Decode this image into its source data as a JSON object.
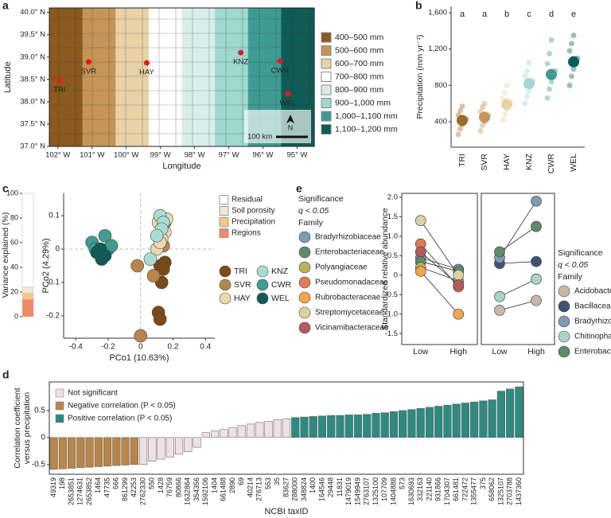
{
  "chart_data": [
    {
      "type": "map",
      "panel": "a",
      "xlabel": "Longitude",
      "ylabel": "Latitude",
      "xlim": [
        -102.25,
        -94.5
      ],
      "ylim": [
        37,
        40.1
      ],
      "xticks": [
        {
          "value": -102,
          "label": "102° W"
        },
        {
          "value": -101,
          "label": "101° W"
        },
        {
          "value": -100,
          "label": "100° W"
        },
        {
          "value": -99,
          "label": "99° W"
        },
        {
          "value": -98,
          "label": "98° W"
        },
        {
          "value": -97,
          "label": "97° W"
        },
        {
          "value": -96,
          "label": "96° W"
        },
        {
          "value": -95,
          "label": "95° W"
        }
      ],
      "yticks": [
        {
          "value": 37,
          "label": "37.0° N"
        },
        {
          "value": 37.5,
          "label": "37.5° N"
        },
        {
          "value": 38,
          "label": "38.0° N"
        },
        {
          "value": 38.5,
          "label": "38.5° N"
        },
        {
          "value": 39,
          "label": "39.0° N"
        },
        {
          "value": 39.5,
          "label": "39.5° N"
        },
        {
          "value": 40,
          "label": "40.0° N"
        }
      ],
      "sites": [
        "TRI",
        "SVR",
        "HAY",
        "KNZ",
        "CWR",
        "WEL"
      ],
      "lon": [
        -101.95,
        -101.1,
        -99.4,
        -96.65,
        -95.5,
        -95.27
      ],
      "lat": [
        38.48,
        38.89,
        38.87,
        39.1,
        38.91,
        38.18
      ],
      "site_color": "#e41a1c",
      "legend": [
        {
          "label": "400–500 mm",
          "color": "#8b5a1e"
        },
        {
          "label": "500–600 mm",
          "color": "#c49556"
        },
        {
          "label": "600–700 mm",
          "color": "#e8d2a6"
        },
        {
          "label": "700–800 mm",
          "color": "#ffffff"
        },
        {
          "label": "800–900 mm",
          "color": "#d9eee9"
        },
        {
          "label": "900–1,000 mm",
          "color": "#9fd8cf"
        },
        {
          "label": "1,000–1,100 mm",
          "color": "#3f9c92"
        },
        {
          "label": "1,100–1,200 mm",
          "color": "#0e5c55"
        }
      ],
      "scale_label": "100 km",
      "north_label": "N"
    },
    {
      "type": "dot",
      "panel": "b",
      "ylabel": "Precipitation (mm yr⁻¹)",
      "categories": [
        "TRI",
        "SVR",
        "HAY",
        "KNZ",
        "CWR",
        "WEL"
      ],
      "colors": [
        "#a0692a",
        "#c49556",
        "#e8d2a6",
        "#9fd8cf",
        "#3f9c92",
        "#0e5c55"
      ],
      "values": [
        415,
        450,
        590,
        820,
        920,
        1060
      ],
      "annotations": [
        "a",
        "a",
        "b",
        "c",
        "d",
        "e"
      ],
      "points": [
        [
          260,
          320,
          370,
          400,
          430,
          470,
          520,
          570
        ],
        [
          300,
          360,
          400,
          440,
          470,
          510,
          560,
          600
        ],
        [
          420,
          480,
          540,
          580,
          620,
          660,
          720,
          800
        ],
        [
          600,
          680,
          740,
          800,
          850,
          900,
          960,
          1050
        ],
        [
          660,
          760,
          840,
          900,
          960,
          1040,
          1150,
          1300
        ],
        [
          800,
          900,
          980,
          1040,
          1100,
          1180,
          1260,
          1350
        ]
      ],
      "ylim": [
        120,
        1670
      ],
      "yticks": [
        400,
        800,
        {
          "value": 1200,
          "label": "1,200"
        },
        {
          "value": 1600,
          "label": "1,600"
        }
      ]
    },
    {
      "type": "stacked_bar",
      "panel": "c",
      "ylabel": "Variance explained (%)",
      "ylim": [
        0,
        100
      ],
      "yticks": [
        0,
        20,
        40,
        60,
        80,
        100
      ],
      "series": [
        {
          "name": "Residual",
          "color": "#ffffff",
          "values": [
            76
          ]
        },
        {
          "name": "Soil porosity",
          "color": "#f3e6d3",
          "values": [
            5
          ]
        },
        {
          "name": "Precipitation",
          "color": "#f5c98a",
          "values": [
            5
          ]
        },
        {
          "name": "Regions",
          "color": "#ef8a62",
          "values": [
            14
          ]
        }
      ]
    },
    {
      "type": "scatter",
      "xlabel": "PCo1 (10.63%)",
      "ylabel": "PCo2 (4.29%)",
      "xlim": [
        -0.475,
        0.458
      ],
      "ylim": [
        -0.267,
        0.167
      ],
      "xticks": [
        -0.4,
        -0.2,
        0,
        0.2,
        0.4
      ],
      "yticks": [
        -0.2,
        -0.1,
        0,
        0.1
      ],
      "series": [
        {
          "name": "TRI",
          "color": "#7a4a17",
          "x": [
            0.12,
            0.13,
            0.15,
            0.11,
            0.12,
            0.14
          ],
          "y": [
            -0.05,
            -0.1,
            -0.04,
            -0.19,
            -0.21,
            -0.06
          ]
        },
        {
          "name": "SVR",
          "color": "#b8864a",
          "x": [
            0.0,
            -0.02,
            0.08,
            0.14,
            0.14,
            0.15
          ],
          "y": [
            -0.26,
            -0.05,
            -0.08,
            0.01,
            0.06,
            0.08
          ]
        },
        {
          "name": "HAY",
          "color": "#ecd9b0",
          "x": [
            0.1,
            0.15,
            0.13,
            0.11,
            0.12,
            0.16
          ],
          "y": [
            0.0,
            0.05,
            0.03,
            0.08,
            0.02,
            0.09
          ]
        },
        {
          "name": "KNZ",
          "color": "#a9ddd4",
          "x": [
            0.12,
            0.14,
            0.06,
            0.13,
            0.1
          ],
          "y": [
            0.1,
            0.08,
            -0.03,
            0.06,
            0.04
          ]
        },
        {
          "name": "CWR",
          "color": "#3f9c92",
          "x": [
            -0.3,
            -0.22,
            -0.2,
            -0.28,
            -0.18
          ],
          "y": [
            0.02,
            0.04,
            0.0,
            0.0,
            0.01
          ]
        },
        {
          "name": "WEL",
          "color": "#0e5c55",
          "x": [
            -0.27,
            -0.24,
            -0.22,
            -0.25
          ],
          "y": [
            -0.01,
            -0.03,
            -0.02,
            0.0
          ]
        }
      ]
    },
    {
      "type": "paired_line",
      "panel": "e",
      "ylabel": "Standardized relative abundance",
      "legend_title": "Significance",
      "legend_subtitle": "q < 0.05",
      "legend_label": "Family",
      "categories": [
        "Low",
        "High"
      ],
      "ylim": [
        -1.78,
        2.1
      ],
      "yticks": [
        -1.5,
        {
          "value": -1,
          "label": "-1.0"
        },
        -0.5,
        0,
        0.5,
        {
          "value": 1,
          "label": "1.0"
        },
        1.5,
        {
          "value": 2,
          "label": "2.0"
        }
      ],
      "series": [
        {
          "name": "Bradyrhizobiaceae",
          "color": "#7f9bb5",
          "values": [
            0.45,
            0.15
          ]
        },
        {
          "name": "Enterobacteriaceae",
          "color": "#5e8c68",
          "values": [
            0.35,
            0.1
          ]
        },
        {
          "name": "Polyangiaceae",
          "color": "#b8b45a",
          "values": [
            0.2,
            -0.15
          ]
        },
        {
          "name": "Pseudomonadaceae",
          "color": "#e07b54",
          "values": [
            0.8,
            -0.3
          ]
        },
        {
          "name": "Rubrobacteraceae",
          "color": "#f3a64a",
          "values": [
            0.1,
            -1.0
          ]
        },
        {
          "name": "Streptomycetaceae",
          "color": "#ddd0a4",
          "values": [
            1.4,
            0.0
          ]
        },
        {
          "name": "Vicinamibacteraceae",
          "color": "#b75a5a",
          "values": [
            0.6,
            -0.25
          ]
        }
      ]
    },
    {
      "type": "paired_line",
      "legend_title": "Significance",
      "legend_subtitle": "q < 0.05",
      "legend_label": "Family",
      "categories": [
        "Low",
        "High"
      ],
      "ylim": [
        -1.78,
        2.1
      ],
      "series": [
        {
          "name": "Acidobacteriaceae",
          "color": "#c9b8a8",
          "values": [
            -0.9,
            -0.65
          ]
        },
        {
          "name": "Bacillaceae",
          "color": "#3e5474",
          "values": [
            0.3,
            0.35
          ]
        },
        {
          "name": "Bradyrhizobiaceae",
          "color": "#7f9bb5",
          "values": [
            0.45,
            1.9
          ]
        },
        {
          "name": "Chitinophagaceae",
          "color": "#a9d3c9",
          "values": [
            -0.55,
            -0.1
          ]
        },
        {
          "name": "Enterobacteriaceae",
          "color": "#5e8c68",
          "values": [
            0.6,
            1.25
          ]
        }
      ]
    },
    {
      "type": "bar",
      "panel": "d",
      "xlabel": "NCBI taxID",
      "ylabel": [
        "Correlation coefficient",
        "versus precipitation"
      ],
      "ylim": [
        -0.68,
        1.03
      ],
      "yticks": [
        -0.5,
        0,
        0.5
      ],
      "categories": [
        "49319",
        "198",
        "2653851",
        "1274631",
        "2653852",
        "1464",
        "47735",
        "666",
        "861299",
        "42253",
        "2762330",
        "550",
        "1428",
        "76759",
        "80866",
        "1632864",
        "354356",
        "1592106",
        "1404",
        "661488",
        "2890",
        "69",
        "40214",
        "276713",
        "553",
        "35",
        "83627",
        "288000",
        "348824",
        "1400",
        "164546",
        "29448",
        "11831",
        "1479019",
        "1549949",
        "2763107",
        "1325100",
        "107709",
        "1404888",
        "573",
        "1630693",
        "332163",
        "221140",
        "931866",
        "1704307",
        "661481",
        "722472",
        "1355477",
        "375",
        "658062",
        "1325107",
        "2703788",
        "1437360"
      ],
      "series": [
        {
          "name": "Not significant",
          "color": "#efe1e1",
          "values": [
            null,
            null,
            null,
            null,
            null,
            null,
            null,
            null,
            null,
            null,
            -0.5,
            -0.44,
            -0.4,
            -0.36,
            -0.31,
            -0.26,
            -0.18,
            0.09,
            0.12,
            0.15,
            0.18,
            0.22,
            0.25,
            0.28,
            0.3,
            0.33,
            0.35,
            null,
            null,
            null,
            null,
            null,
            null,
            null,
            null,
            null,
            null,
            null,
            null,
            null,
            null,
            null,
            null,
            null,
            null,
            null,
            null,
            null,
            null,
            null,
            null,
            null,
            null
          ]
        },
        {
          "name": "Negative correlation (P < 0.05)",
          "color": "#b8864a",
          "values": [
            -0.59,
            -0.58,
            -0.57,
            -0.56,
            -0.55,
            -0.54,
            -0.53,
            -0.52,
            -0.51,
            -0.5,
            null,
            null,
            null,
            null,
            null,
            null,
            null,
            null,
            null,
            null,
            null,
            null,
            null,
            null,
            null,
            null,
            null,
            null,
            null,
            null,
            null,
            null,
            null,
            null,
            null,
            null,
            null,
            null,
            null,
            null,
            null,
            null,
            null,
            null,
            null,
            null,
            null,
            null,
            null,
            null,
            null,
            null,
            null
          ]
        },
        {
          "name": "Positive correlation (P < 0.05)",
          "color": "#2f8a80",
          "values": [
            null,
            null,
            null,
            null,
            null,
            null,
            null,
            null,
            null,
            null,
            null,
            null,
            null,
            null,
            null,
            null,
            null,
            null,
            null,
            null,
            null,
            null,
            null,
            null,
            null,
            null,
            null,
            0.37,
            0.38,
            0.39,
            0.4,
            0.41,
            0.41,
            0.42,
            0.42,
            0.43,
            0.45,
            0.46,
            0.48,
            0.5,
            0.52,
            0.54,
            0.56,
            0.58,
            0.6,
            0.62,
            0.64,
            0.66,
            0.68,
            0.7,
            0.86,
            0.9,
            0.94
          ]
        }
      ]
    }
  ]
}
